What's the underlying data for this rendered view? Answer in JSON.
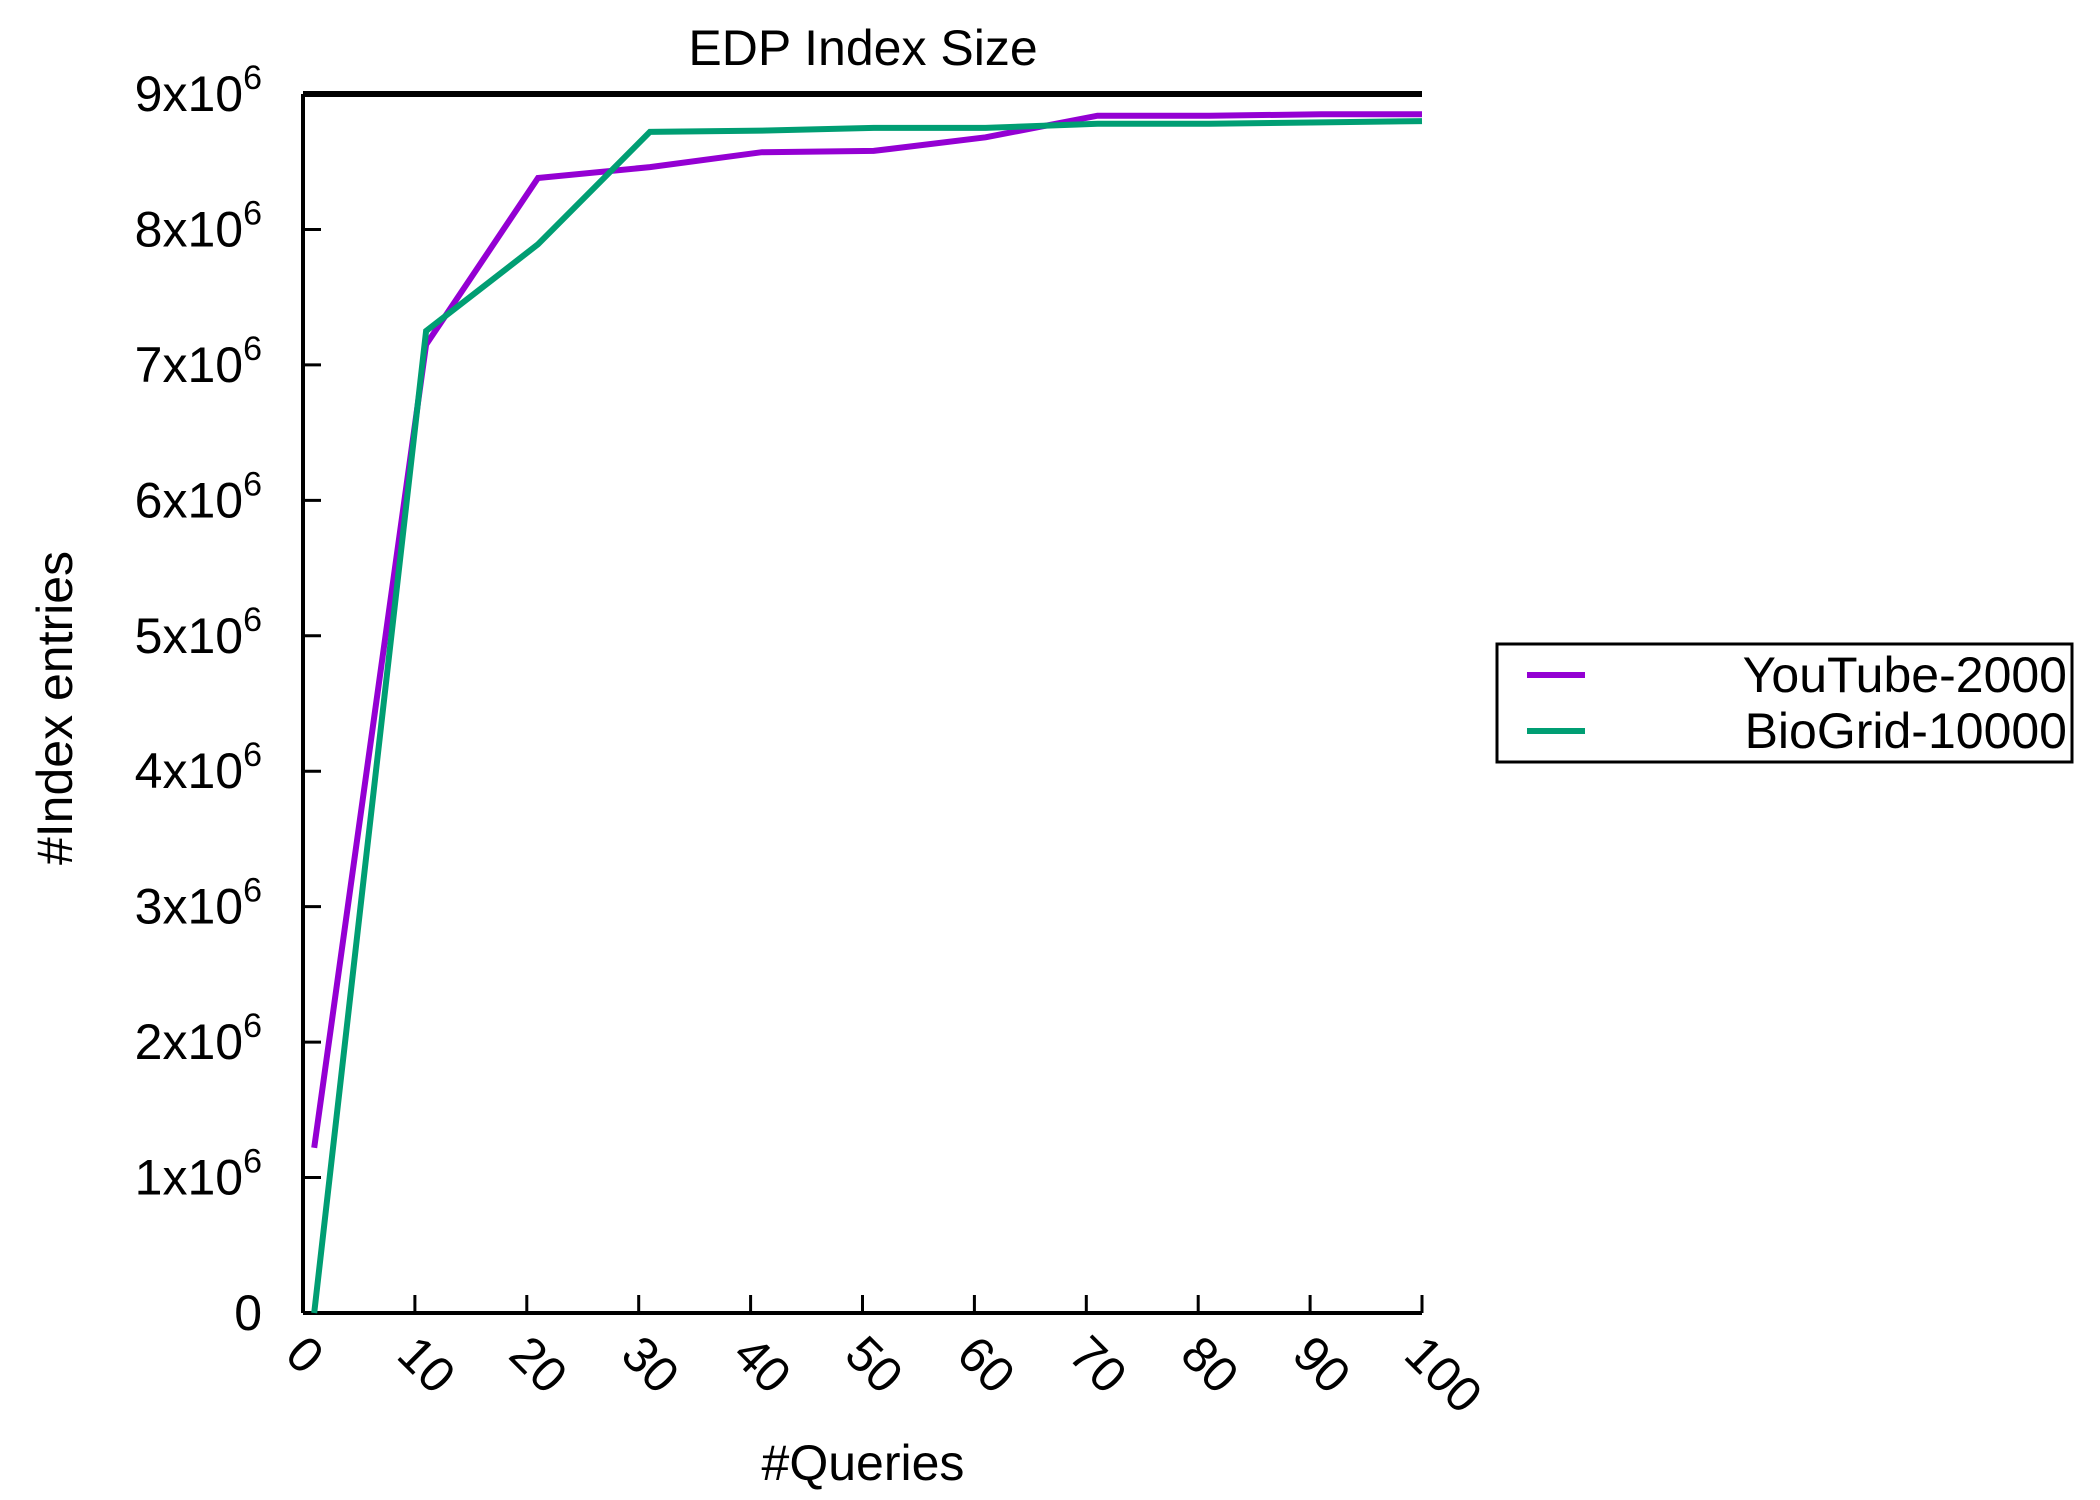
{
  "chart_data": {
    "type": "line",
    "title": "EDP Index Size",
    "xlabel": "#Queries",
    "ylabel": "#Index entries",
    "xlim": [
      0,
      100
    ],
    "ylim": [
      0,
      9000000
    ],
    "x_ticks": [
      0,
      10,
      20,
      30,
      40,
      50,
      60,
      70,
      80,
      90,
      100
    ],
    "x_tick_labels": [
      "0",
      "10",
      "20",
      "30",
      "40",
      "50",
      "60",
      "70",
      "80",
      "90",
      "100"
    ],
    "y_ticks": [
      0,
      1000000,
      2000000,
      3000000,
      4000000,
      5000000,
      6000000,
      7000000,
      8000000,
      9000000
    ],
    "y_tick_labels": [
      {
        "base": "0",
        "exp": ""
      },
      {
        "base": "1x10",
        "exp": "6"
      },
      {
        "base": "2x10",
        "exp": "6"
      },
      {
        "base": "3x10",
        "exp": "6"
      },
      {
        "base": "4x10",
        "exp": "6"
      },
      {
        "base": "5x10",
        "exp": "6"
      },
      {
        "base": "6x10",
        "exp": "6"
      },
      {
        "base": "7x10",
        "exp": "6"
      },
      {
        "base": "8x10",
        "exp": "6"
      },
      {
        "base": "9x10",
        "exp": "6"
      }
    ],
    "grid": false,
    "legend_position": "right",
    "series": [
      {
        "name": "YouTube-2000",
        "color": "#9400d3",
        "x": [
          1,
          11,
          21,
          31,
          41,
          51,
          61,
          71,
          81,
          91,
          100
        ],
        "y": [
          1220000,
          7150000,
          8380000,
          8460000,
          8570000,
          8580000,
          8680000,
          8840000,
          8840000,
          8850000,
          8850000
        ]
      },
      {
        "name": "BioGrid-10000",
        "color": "#009e73",
        "x": [
          1,
          11,
          21,
          31,
          41,
          51,
          61,
          71,
          81,
          91,
          100
        ],
        "y": [
          0,
          7250000,
          7890000,
          8720000,
          8730000,
          8750000,
          8750000,
          8780000,
          8780000,
          8790000,
          8800000
        ]
      }
    ]
  }
}
